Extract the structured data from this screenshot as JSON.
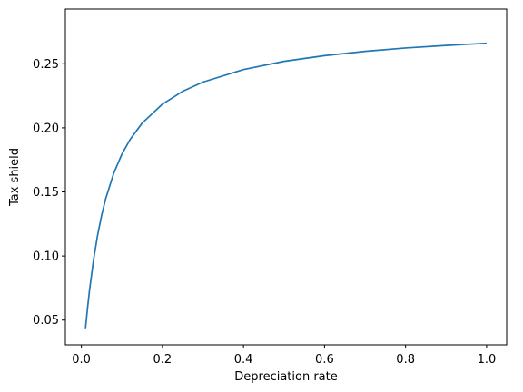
{
  "chart_data": {
    "type": "line",
    "title": "",
    "xlabel": "Depreciation rate",
    "ylabel": "Tax shield",
    "xlim": [
      -0.0395,
      1.0495
    ],
    "ylim": [
      0.0307,
      0.2927
    ],
    "x_ticks": [
      0.0,
      0.2,
      0.4,
      0.6,
      0.8,
      1.0
    ],
    "x_tick_labels": [
      "0.0",
      "0.2",
      "0.4",
      "0.6",
      "0.8",
      "1.0"
    ],
    "y_ticks": [
      0.05,
      0.1,
      0.15,
      0.2,
      0.25
    ],
    "y_tick_labels": [
      "0.05",
      "0.10",
      "0.15",
      "0.20",
      "0.25"
    ],
    "grid": false,
    "legend": "none",
    "series": [
      {
        "color": "#1f77b4",
        "x": [
          0.01,
          0.015,
          0.02,
          0.03,
          0.04,
          0.05,
          0.06,
          0.08,
          0.1,
          0.12,
          0.15,
          0.2,
          0.25,
          0.3,
          0.4,
          0.5,
          0.6,
          0.7,
          0.8,
          0.9,
          1.0
        ],
        "y": [
          0.0429,
          0.0589,
          0.0731,
          0.097,
          0.1162,
          0.1318,
          0.1447,
          0.1647,
          0.1795,
          0.1908,
          0.2037,
          0.2185,
          0.2285,
          0.2357,
          0.2455,
          0.2519,
          0.2563,
          0.2597,
          0.2623,
          0.2643,
          0.266
        ]
      }
    ]
  }
}
